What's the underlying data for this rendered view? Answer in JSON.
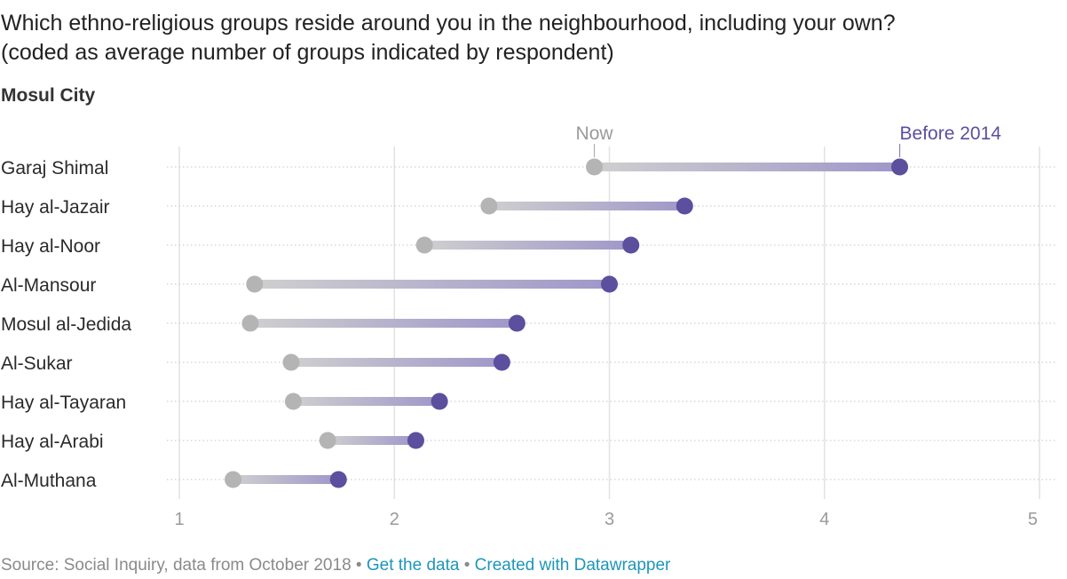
{
  "title": "Which ethno-religious groups reside around you in the neighbourhood, including your own?\n(coded as average number of groups indicated by respondent)",
  "subtitle": "Mosul City",
  "footer": {
    "source": "Source: Social Inquiry, data from October 2018",
    "separator": "•",
    "get_data_link": "Get the data",
    "created_with_link": "Created with Datawrapper"
  },
  "colors": {
    "now": "#b4b4b4",
    "before": "#5b4f9e",
    "now_label": "#9a9a9a",
    "before_label": "#5b4f9e",
    "grid": "#e2e2e2",
    "row_line": "#cfcfcf",
    "link": "#1d96b9"
  },
  "chart_data": {
    "type": "dumbbell",
    "xlim": [
      1,
      5
    ],
    "x_ticks": [
      "1",
      "2",
      "3",
      "4",
      "5"
    ],
    "grid": true,
    "categories": [
      "Garaj Shimal",
      "Hay al-Jazair",
      "Hay al-Noor",
      "Al-Mansour",
      "Mosul al-Jedida",
      "Al-Sukar",
      "Hay al-Tayaran",
      "Hay al-Arabi",
      "Al-Muthana"
    ],
    "series": [
      {
        "name": "Now",
        "values": [
          2.93,
          2.44,
          2.14,
          1.35,
          1.33,
          1.52,
          1.53,
          1.69,
          1.25
        ]
      },
      {
        "name": "Before 2014",
        "values": [
          4.35,
          3.35,
          3.1,
          3.0,
          2.57,
          2.5,
          2.21,
          2.1,
          1.74
        ]
      }
    ]
  }
}
